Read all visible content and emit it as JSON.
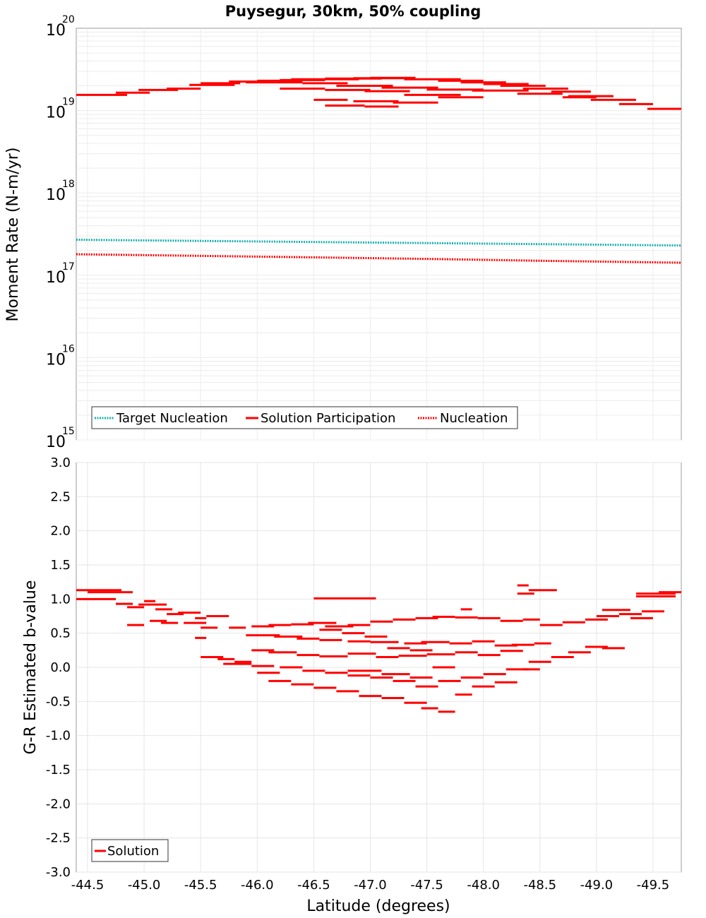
{
  "title": "Puysegur, 30km, 50% coupling",
  "xlabel": "Latitude (degrees)",
  "colors": {
    "red": "#ff0000",
    "cyan": "#1aafaf",
    "grid": "#e6e6e6",
    "frame": "#999999"
  },
  "chart_data": [
    {
      "type": "line",
      "panel": "moment-rate",
      "ylabel": "Moment Rate (N-m/yr)",
      "yscale": "log",
      "ylim": [
        1000000000000000.0,
        1e+20
      ],
      "xlim": [
        -44.4,
        -49.75
      ],
      "y_tick_labels": [
        "10",
        "10",
        "10",
        "10",
        "10",
        "10"
      ],
      "y_tick_exponents": [
        "15",
        "16",
        "17",
        "18",
        "19",
        "20"
      ],
      "legend": [
        "Target Nucleation",
        "Solution Participation",
        "Nucleation"
      ],
      "legend_position": "bottom-left",
      "series": [
        {
          "name": "Target Nucleation",
          "style": "dotted",
          "color": "#1aafaf",
          "x": [
            -44.4,
            -49.75
          ],
          "y": [
            2.7e+17,
            2.3e+17
          ]
        },
        {
          "name": "Nucleation",
          "style": "dotted",
          "color": "#ff0000",
          "x": [
            -44.4,
            -45.5,
            -46.5,
            -47.5,
            -48.5,
            -49.75
          ],
          "y": [
            1.8e+17,
            1.72e+17,
            1.65e+17,
            1.58e+17,
            1.5e+17,
            1.42e+17
          ]
        },
        {
          "name": "Solution Participation",
          "style": "segments",
          "color": "#ff0000",
          "segments": [
            [
              -44.4,
              -44.85,
              1.55e+19
            ],
            [
              -44.75,
              -45.05,
              1.65e+19
            ],
            [
              -44.95,
              -45.3,
              1.78e+19
            ],
            [
              -45.2,
              -45.5,
              1.85e+19
            ],
            [
              -45.4,
              -45.8,
              2.05e+19
            ],
            [
              -45.5,
              -45.85,
              2.15e+19
            ],
            [
              -45.75,
              -46.2,
              2.25e+19
            ],
            [
              -46.0,
              -46.4,
              2.3e+19
            ],
            [
              -46.2,
              -46.6,
              2.35e+19
            ],
            [
              -46.3,
              -46.9,
              2.4e+19
            ],
            [
              -46.6,
              -47.1,
              2.45e+19
            ],
            [
              -46.85,
              -47.35,
              2.47e+19
            ],
            [
              -47.0,
              -47.4,
              2.5e+19
            ],
            [
              -47.3,
              -47.8,
              2.4e+19
            ],
            [
              -47.6,
              -48.0,
              2.3e+19
            ],
            [
              -47.8,
              -48.2,
              2.2e+19
            ],
            [
              -48.0,
              -48.4,
              2.1e+19
            ],
            [
              -48.15,
              -48.55,
              2e+19
            ],
            [
              -48.35,
              -48.75,
              1.85e+19
            ],
            [
              -48.6,
              -48.95,
              1.7e+19
            ],
            [
              -48.75,
              -49.15,
              1.5e+19
            ],
            [
              -48.95,
              -49.35,
              1.35e+19
            ],
            [
              -49.2,
              -49.5,
              1.2e+19
            ],
            [
              -49.45,
              -49.75,
              1.05e+19
            ],
            [
              -45.9,
              -46.4,
              2.2e+19
            ],
            [
              -46.4,
              -46.8,
              2.15e+19
            ],
            [
              -46.7,
              -47.2,
              2e+19
            ],
            [
              -47.1,
              -47.6,
              1.9e+19
            ],
            [
              -47.5,
              -48.0,
              1.8e+19
            ],
            [
              -47.9,
              -48.4,
              1.75e+19
            ],
            [
              -48.3,
              -48.7,
              1.6e+19
            ],
            [
              -48.7,
              -49.0,
              1.45e+19
            ],
            [
              -46.2,
              -46.6,
              1.85e+19
            ],
            [
              -46.6,
              -47.0,
              1.78e+19
            ],
            [
              -46.95,
              -47.35,
              1.72e+19
            ],
            [
              -47.3,
              -47.8,
              1.55e+19
            ],
            [
              -47.6,
              -48.0,
              1.45e+19
            ],
            [
              -46.5,
              -46.8,
              1.35e+19
            ],
            [
              -46.85,
              -47.25,
              1.3e+19
            ],
            [
              -47.2,
              -47.6,
              1.25e+19
            ],
            [
              -46.6,
              -46.95,
              1.15e+19
            ],
            [
              -46.95,
              -47.25,
              1.12e+19
            ]
          ]
        }
      ]
    },
    {
      "type": "line",
      "panel": "b-value",
      "ylabel": "G-R Estimated b-value",
      "ylim": [
        -3.0,
        3.0
      ],
      "xlim": [
        -44.4,
        -49.75
      ],
      "y_ticks": [
        "3.0",
        "2.5",
        "2.0",
        "1.5",
        "1.0",
        "0.5",
        "0.0",
        "-0.5",
        "-1.0",
        "-1.5",
        "-2.0",
        "-2.5",
        "-3.0"
      ],
      "x_ticks": [
        "-44.5",
        "-45.0",
        "-45.5",
        "-46.0",
        "-46.5",
        "-47.0",
        "-47.5",
        "-48.0",
        "-48.5",
        "-49.0",
        "-49.5"
      ],
      "legend": [
        "Solution"
      ],
      "legend_position": "bottom-left",
      "series": [
        {
          "name": "Solution",
          "style": "segments",
          "color": "#ff0000",
          "segments": [
            [
              -44.4,
              -44.8,
              1.13
            ],
            [
              -44.5,
              -44.9,
              1.1
            ],
            [
              -44.4,
              -44.75,
              1.0
            ],
            [
              -44.75,
              -44.9,
              0.93
            ],
            [
              -44.85,
              -45.0,
              0.88
            ],
            [
              -44.95,
              -45.2,
              0.92
            ],
            [
              -45.0,
              -45.1,
              0.97
            ],
            [
              -45.1,
              -45.25,
              0.85
            ],
            [
              -45.2,
              -45.35,
              0.78
            ],
            [
              -45.3,
              -45.5,
              0.8
            ],
            [
              -45.45,
              -45.55,
              0.72
            ],
            [
              -45.35,
              -45.55,
              0.65
            ],
            [
              -44.85,
              -45.0,
              0.62
            ],
            [
              -45.05,
              -45.2,
              0.68
            ],
            [
              -45.15,
              -45.3,
              0.65
            ],
            [
              -45.45,
              -45.55,
              0.43
            ],
            [
              -45.55,
              -45.75,
              0.75
            ],
            [
              -45.5,
              -45.65,
              0.58
            ],
            [
              -45.75,
              -45.9,
              0.58
            ],
            [
              -45.95,
              -46.15,
              0.6
            ],
            [
              -46.1,
              -46.3,
              0.62
            ],
            [
              -46.3,
              -46.5,
              0.63
            ],
            [
              -46.45,
              -46.7,
              0.65
            ],
            [
              -46.6,
              -46.85,
              0.6
            ],
            [
              -46.8,
              -47.0,
              0.62
            ],
            [
              -47.0,
              -47.2,
              0.67
            ],
            [
              -47.2,
              -47.4,
              0.7
            ],
            [
              -47.4,
              -47.6,
              0.72
            ],
            [
              -47.55,
              -47.75,
              0.74
            ],
            [
              -47.75,
              -47.95,
              0.73
            ],
            [
              -47.95,
              -48.15,
              0.72
            ],
            [
              -48.15,
              -48.35,
              0.68
            ],
            [
              -48.35,
              -48.5,
              0.7
            ],
            [
              -48.5,
              -48.7,
              0.62
            ],
            [
              -48.7,
              -48.9,
              0.66
            ],
            [
              -48.9,
              -49.1,
              0.7
            ],
            [
              -49.0,
              -49.2,
              0.75
            ],
            [
              -49.2,
              -49.4,
              0.78
            ],
            [
              -49.05,
              -49.3,
              0.84
            ],
            [
              -49.3,
              -49.5,
              0.72
            ],
            [
              -49.4,
              -49.6,
              0.82
            ],
            [
              -48.4,
              -48.65,
              1.13
            ],
            [
              -48.3,
              -48.45,
              1.08
            ],
            [
              -48.3,
              -48.4,
              1.2
            ],
            [
              -46.5,
              -47.05,
              1.01
            ],
            [
              -47.8,
              -47.9,
              0.85
            ],
            [
              -49.55,
              -49.75,
              1.1
            ],
            [
              -49.35,
              -49.7,
              1.08
            ],
            [
              -49.35,
              -49.7,
              1.04
            ],
            [
              -45.9,
              -46.2,
              0.47
            ],
            [
              -46.15,
              -46.4,
              0.45
            ],
            [
              -46.35,
              -46.55,
              0.42
            ],
            [
              -46.55,
              -46.75,
              0.4
            ],
            [
              -46.8,
              -47.0,
              0.38
            ],
            [
              -47.0,
              -47.25,
              0.37
            ],
            [
              -47.3,
              -47.5,
              0.35
            ],
            [
              -47.45,
              -47.7,
              0.37
            ],
            [
              -47.7,
              -47.9,
              0.35
            ],
            [
              -47.9,
              -48.1,
              0.38
            ],
            [
              -48.1,
              -48.3,
              0.32
            ],
            [
              -48.25,
              -48.45,
              0.33
            ],
            [
              -48.45,
              -48.6,
              0.35
            ],
            [
              -45.95,
              -46.15,
              0.25
            ],
            [
              -46.1,
              -46.35,
              0.22
            ],
            [
              -46.35,
              -46.55,
              0.18
            ],
            [
              -46.55,
              -46.8,
              0.16
            ],
            [
              -46.8,
              -47.05,
              0.2
            ],
            [
              -47.05,
              -47.25,
              0.15
            ],
            [
              -47.25,
              -47.5,
              0.17
            ],
            [
              -47.5,
              -47.75,
              0.19
            ],
            [
              -47.75,
              -47.95,
              0.22
            ],
            [
              -47.95,
              -48.15,
              0.18
            ],
            [
              -48.15,
              -48.35,
              0.24
            ],
            [
              -45.65,
              -45.8,
              0.12
            ],
            [
              -45.8,
              -45.95,
              0.08
            ],
            [
              -45.95,
              -46.15,
              0.02
            ],
            [
              -46.2,
              -46.4,
              0.0
            ],
            [
              -46.4,
              -46.6,
              -0.05
            ],
            [
              -46.6,
              -46.8,
              -0.08
            ],
            [
              -46.8,
              -47.0,
              -0.12
            ],
            [
              -47.0,
              -47.2,
              -0.15
            ],
            [
              -47.2,
              -47.4,
              -0.2
            ],
            [
              -47.4,
              -47.6,
              -0.28
            ],
            [
              -47.6,
              -47.8,
              -0.2
            ],
            [
              -47.8,
              -48.0,
              -0.15
            ],
            [
              -48.0,
              -48.2,
              -0.1
            ],
            [
              -48.2,
              -48.4,
              -0.03
            ],
            [
              -48.4,
              -48.6,
              0.08
            ],
            [
              -48.6,
              -48.8,
              0.15
            ],
            [
              -48.75,
              -48.95,
              0.22
            ],
            [
              -48.9,
              -49.1,
              0.3
            ],
            [
              -49.05,
              -49.25,
              0.28
            ],
            [
              -46.1,
              -46.3,
              -0.2
            ],
            [
              -46.3,
              -46.5,
              -0.25
            ],
            [
              -46.5,
              -46.7,
              -0.3
            ],
            [
              -46.7,
              -46.9,
              -0.35
            ],
            [
              -46.9,
              -47.1,
              -0.42
            ],
            [
              -47.1,
              -47.3,
              -0.45
            ],
            [
              -47.3,
              -47.5,
              -0.52
            ],
            [
              -47.45,
              -47.6,
              -0.6
            ],
            [
              -47.6,
              -47.75,
              -0.65
            ],
            [
              -47.75,
              -47.9,
              -0.4
            ],
            [
              -47.9,
              -48.1,
              -0.28
            ],
            [
              -48.1,
              -48.3,
              -0.22
            ],
            [
              -46.8,
              -47.1,
              -0.05
            ],
            [
              -47.1,
              -47.35,
              -0.1
            ],
            [
              -47.35,
              -47.55,
              -0.15
            ],
            [
              -45.5,
              -45.7,
              0.15
            ],
            [
              -45.7,
              -45.95,
              0.05
            ],
            [
              -46.0,
              -46.2,
              -0.08
            ],
            [
              -46.55,
              -46.75,
              0.55
            ],
            [
              -46.75,
              -46.95,
              0.5
            ],
            [
              -46.95,
              -47.15,
              0.45
            ],
            [
              -47.15,
              -47.35,
              0.28
            ],
            [
              -47.35,
              -47.55,
              0.25
            ],
            [
              -47.55,
              -47.75,
              0.0
            ],
            [
              -48.35,
              -48.5,
              -0.03
            ]
          ]
        }
      ]
    }
  ]
}
